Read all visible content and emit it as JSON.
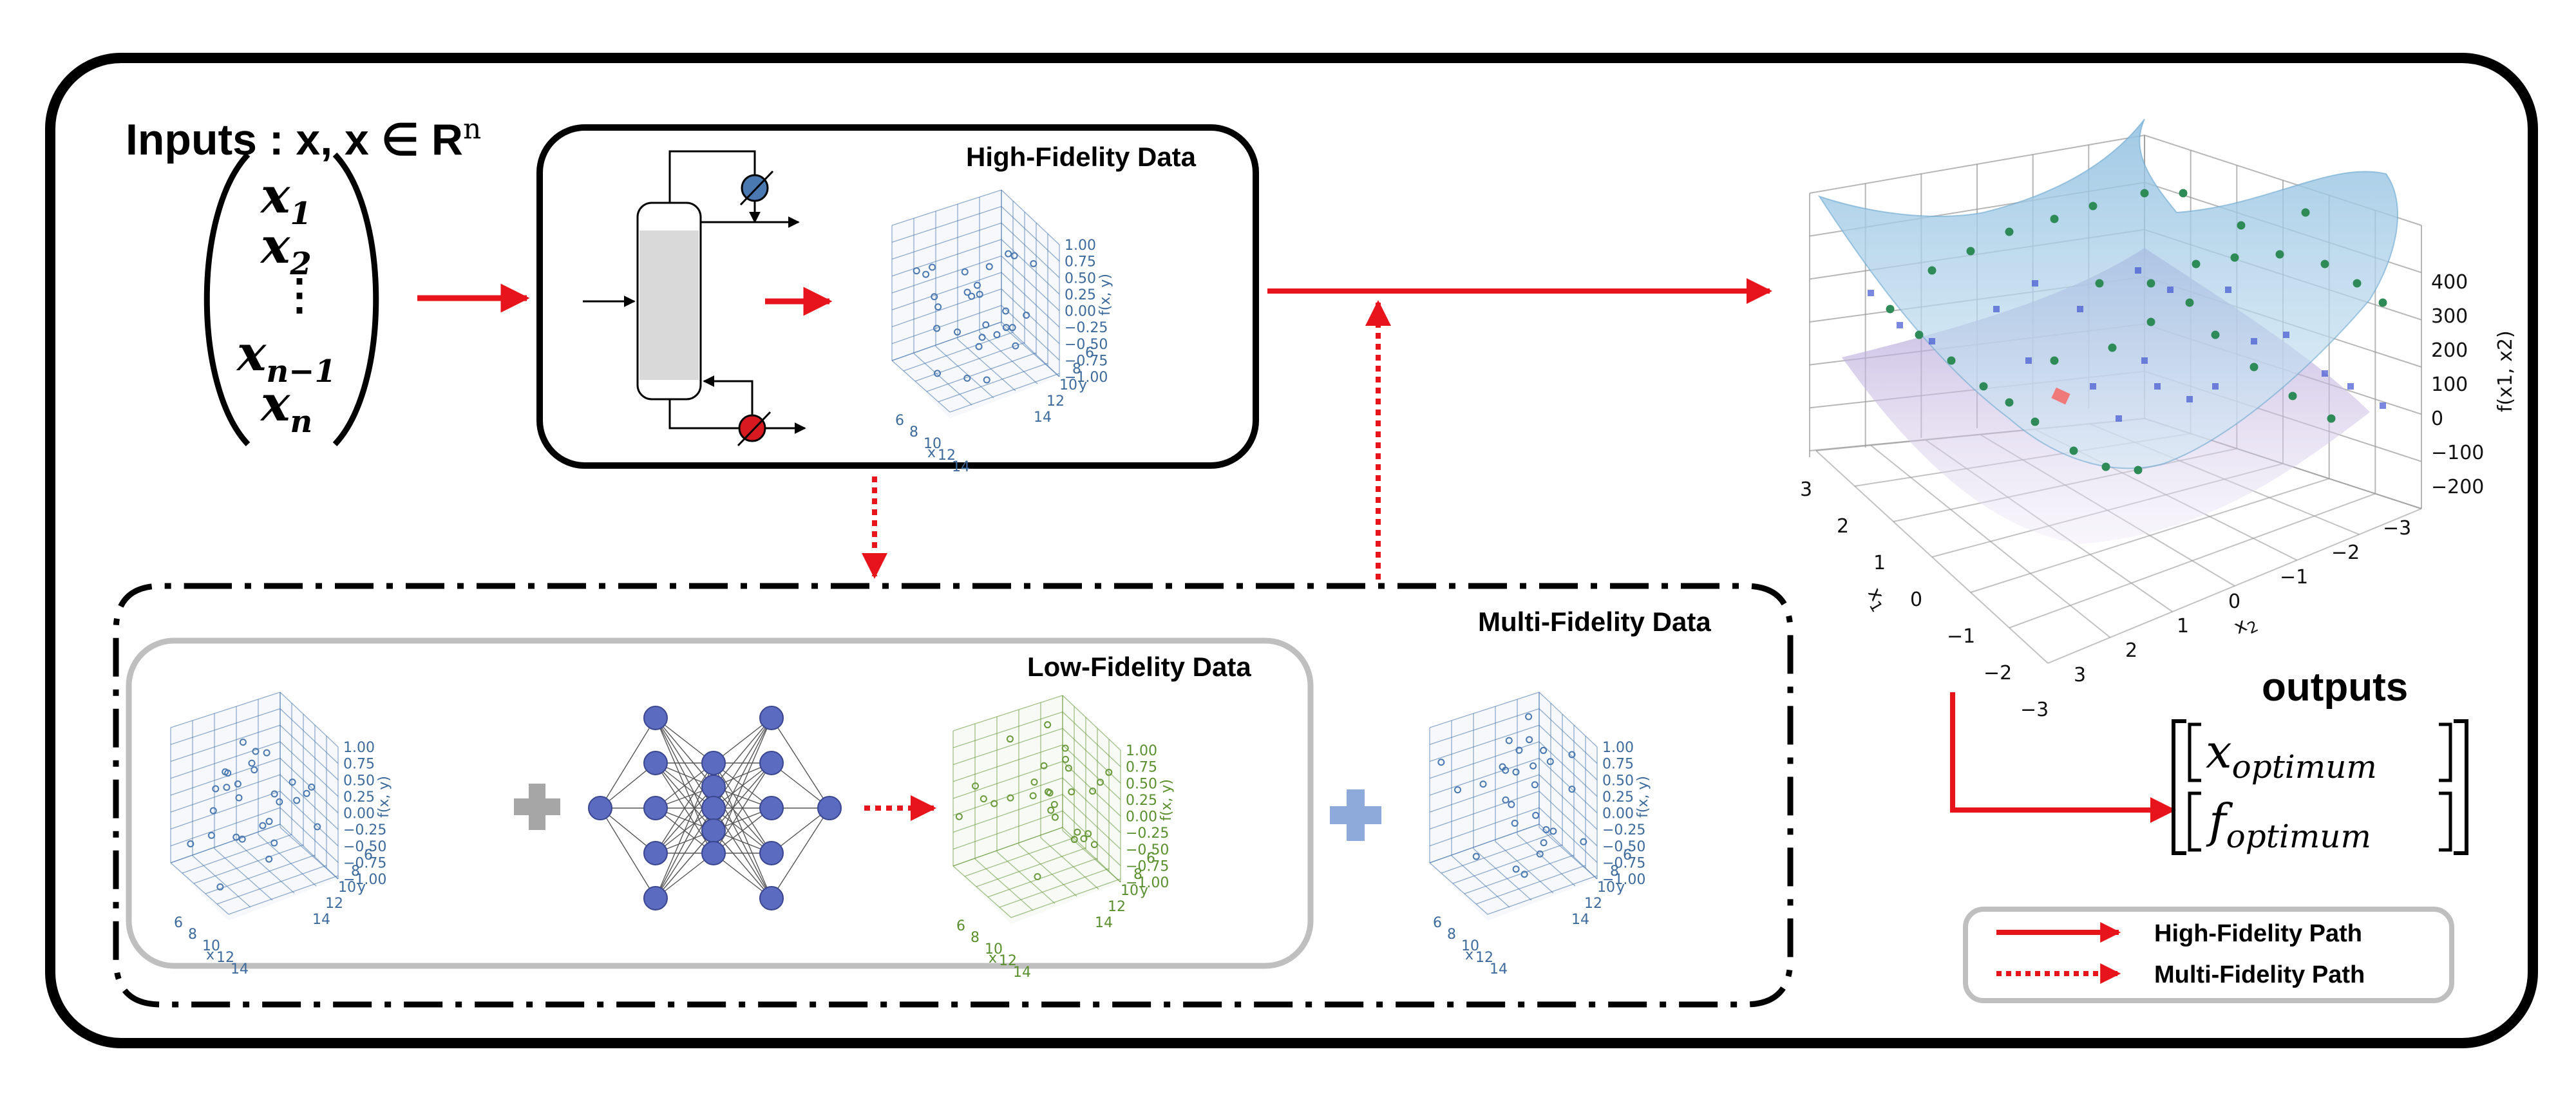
{
  "inputs": {
    "title": "Inputs : x, x ∈ R",
    "title_sup": "n",
    "vector": [
      "x",
      "x",
      "⋮",
      "x",
      "x"
    ],
    "vector_subs": [
      "1",
      "2",
      "",
      "n−1",
      "n"
    ]
  },
  "high_fidelity_box": {
    "title": "High-Fidelity Data"
  },
  "multi_fidelity_box": {
    "title": "Multi-Fidelity Data"
  },
  "low_fidelity_box": {
    "title": "Low-Fidelity Data"
  },
  "scatter_plot": {
    "z_ticks": [
      "1.00",
      "0.75",
      "0.50",
      "0.25",
      "0.00",
      "−0.25",
      "−0.50",
      "−0.75",
      "−1.00"
    ],
    "z_label": "f(x, y)",
    "x_ticks": [
      "6",
      "8",
      "10",
      "12",
      "14"
    ],
    "x_label": "x",
    "y_ticks": [
      "6",
      "8",
      "10",
      "12",
      "14"
    ],
    "y_label": "y"
  },
  "surface_plot": {
    "z_ticks": [
      "400",
      "300",
      "200",
      "100",
      "0",
      "−100",
      "−200"
    ],
    "z_label": "f(x1, x2)",
    "x1_ticks": [
      "3",
      "2",
      "1",
      "0",
      "−1",
      "−2",
      "−3"
    ],
    "x1_label": "x",
    "x1_label_sub": "1",
    "x2_ticks": [
      "3",
      "2",
      "1",
      "0",
      "−1",
      "−2",
      "−3"
    ],
    "x2_label": "x",
    "x2_label_sub": "2"
  },
  "outputs": {
    "title": "outputs",
    "items": [
      {
        "base": "x",
        "sub": "optimum"
      },
      {
        "base": "f",
        "sub": "optimum"
      }
    ]
  },
  "legend": {
    "items": [
      {
        "label": "High-Fidelity Path",
        "style": "solid"
      },
      {
        "label": "Multi-Fidelity Path",
        "style": "dotted"
      }
    ]
  },
  "colors": {
    "arrow": "#e8141b",
    "scatter_blue": "#4a78b0",
    "scatter_green": "#6a9a3a",
    "node": "#5b6bbf",
    "plus_gray": "#a6a6a6",
    "plus_blue": "#8eaadb",
    "surface_top": "#a9cde6",
    "surface_bottom": "#b7a7d6"
  }
}
